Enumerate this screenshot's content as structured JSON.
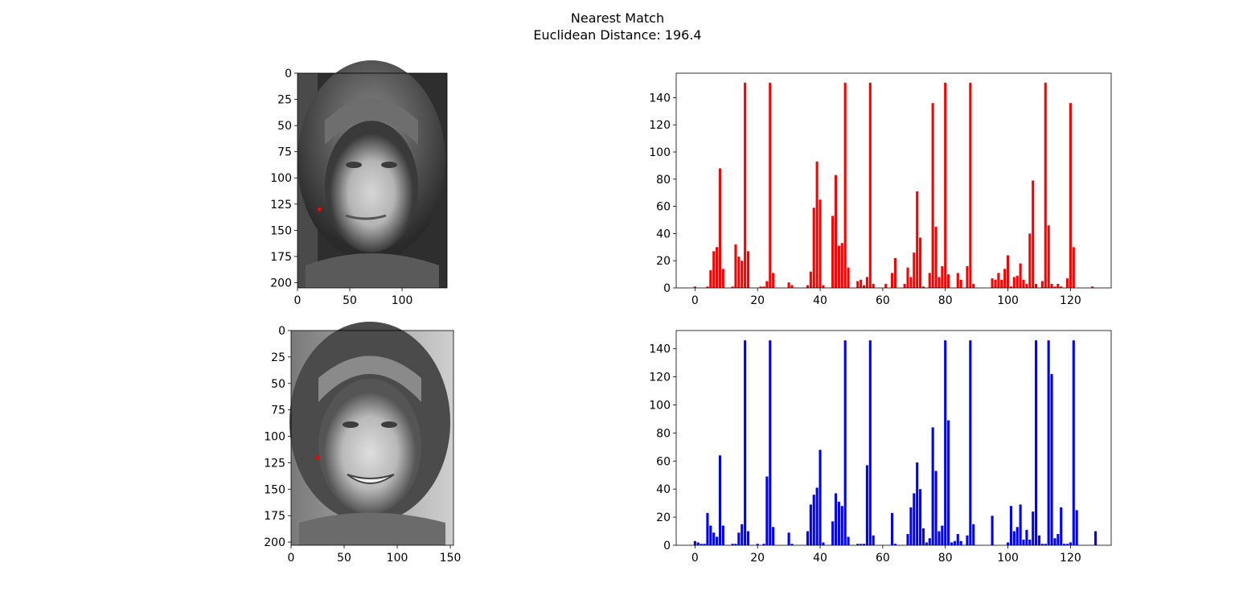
{
  "figure": {
    "title_line1": "Nearest Match",
    "title_line2": "Euclidean Distance: 196.4"
  },
  "chart_data": [
    {
      "type": "image",
      "description_role": "query face (grayscale photo)",
      "xlim": [
        0,
        143
      ],
      "ylim": [
        205,
        0
      ],
      "xticks": [
        0,
        50,
        100
      ],
      "yticks": [
        0,
        25,
        50,
        75,
        100,
        125,
        150,
        175,
        200
      ],
      "marker": {
        "x": 21,
        "y": 130,
        "color": "#ff0000"
      }
    },
    {
      "type": "bar",
      "color": "#ff0000",
      "xlim": [
        -6,
        133
      ],
      "ylim": [
        0,
        158
      ],
      "xticks": [
        0,
        20,
        40,
        60,
        80,
        100,
        120
      ],
      "yticks": [
        0,
        20,
        40,
        60,
        80,
        100,
        120,
        140
      ],
      "x_start": 0,
      "values": [
        1,
        0,
        0,
        0,
        1,
        13,
        27,
        30,
        88,
        14,
        0,
        0,
        1,
        32,
        23,
        20,
        151,
        27,
        0,
        0,
        0,
        1,
        1,
        5,
        151,
        11,
        0,
        0,
        0,
        0,
        4,
        2,
        0,
        0,
        0,
        0,
        2,
        12,
        59,
        93,
        65,
        2,
        0,
        0,
        53,
        83,
        31,
        33,
        151,
        15,
        0,
        0,
        5,
        6,
        2,
        8,
        151,
        3,
        0,
        0,
        0,
        3,
        0,
        11,
        22,
        0,
        0,
        3,
        15,
        8,
        26,
        71,
        37,
        1,
        0,
        11,
        136,
        45,
        8,
        16,
        151,
        10,
        0,
        0,
        11,
        6,
        0,
        16,
        151,
        3,
        0,
        0,
        0,
        0,
        0,
        7,
        6,
        11,
        6,
        14,
        24,
        1,
        8,
        9,
        18,
        6,
        3,
        40,
        79,
        3,
        0,
        5,
        151,
        46,
        3,
        1,
        3,
        1,
        0,
        7,
        136,
        30,
        0,
        0,
        0,
        0,
        0,
        1
      ]
    },
    {
      "type": "image",
      "description_role": "nearest match face (grayscale photo)",
      "xlim": [
        0,
        153
      ],
      "ylim": [
        203,
        0
      ],
      "xticks": [
        0,
        50,
        100,
        150
      ],
      "yticks": [
        0,
        25,
        50,
        75,
        100,
        125,
        150,
        175,
        200
      ],
      "marker": {
        "x": 25,
        "y": 120,
        "color": "#ff0000"
      }
    },
    {
      "type": "bar",
      "color": "#0000ff",
      "xlim": [
        -6,
        133
      ],
      "ylim": [
        0,
        153
      ],
      "xticks": [
        0,
        20,
        40,
        60,
        80,
        100,
        120
      ],
      "yticks": [
        0,
        20,
        40,
        60,
        80,
        100,
        120,
        140
      ],
      "x_start": 0,
      "values": [
        3,
        2,
        1,
        1,
        23,
        14,
        9,
        6,
        64,
        14,
        0,
        0,
        1,
        1,
        9,
        15,
        146,
        10,
        0,
        0,
        1,
        0,
        1,
        49,
        146,
        13,
        0,
        0,
        0,
        0,
        9,
        1,
        0,
        0,
        0,
        0,
        10,
        29,
        36,
        41,
        68,
        2,
        0,
        0,
        17,
        37,
        31,
        28,
        146,
        6,
        0,
        0,
        1,
        1,
        1,
        57,
        146,
        7,
        0,
        0,
        0,
        0,
        0,
        23,
        1,
        0,
        0,
        0,
        8,
        27,
        37,
        59,
        40,
        12,
        2,
        5,
        84,
        53,
        10,
        14,
        146,
        89,
        2,
        3,
        8,
        3,
        0,
        7,
        146,
        15,
        0,
        0,
        0,
        0,
        0,
        21,
        0,
        0,
        0,
        0,
        2,
        28,
        10,
        13,
        29,
        4,
        11,
        4,
        24,
        146,
        7,
        1,
        1,
        146,
        122,
        5,
        8,
        27,
        1,
        1,
        2,
        146,
        25,
        0,
        0,
        0,
        0,
        0,
        10
      ]
    }
  ]
}
